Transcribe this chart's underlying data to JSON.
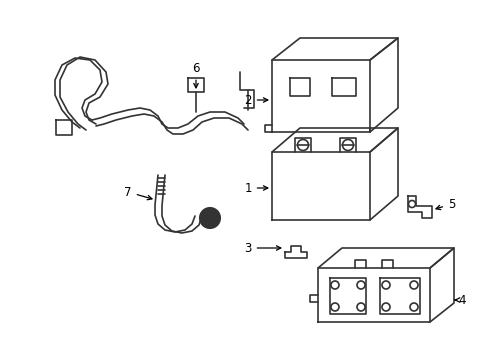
{
  "background_color": "#ffffff",
  "line_color": "#333333",
  "line_width": 1.2,
  "label_fontsize": 8.5,
  "fig_width": 4.89,
  "fig_height": 3.6,
  "dpi": 100
}
